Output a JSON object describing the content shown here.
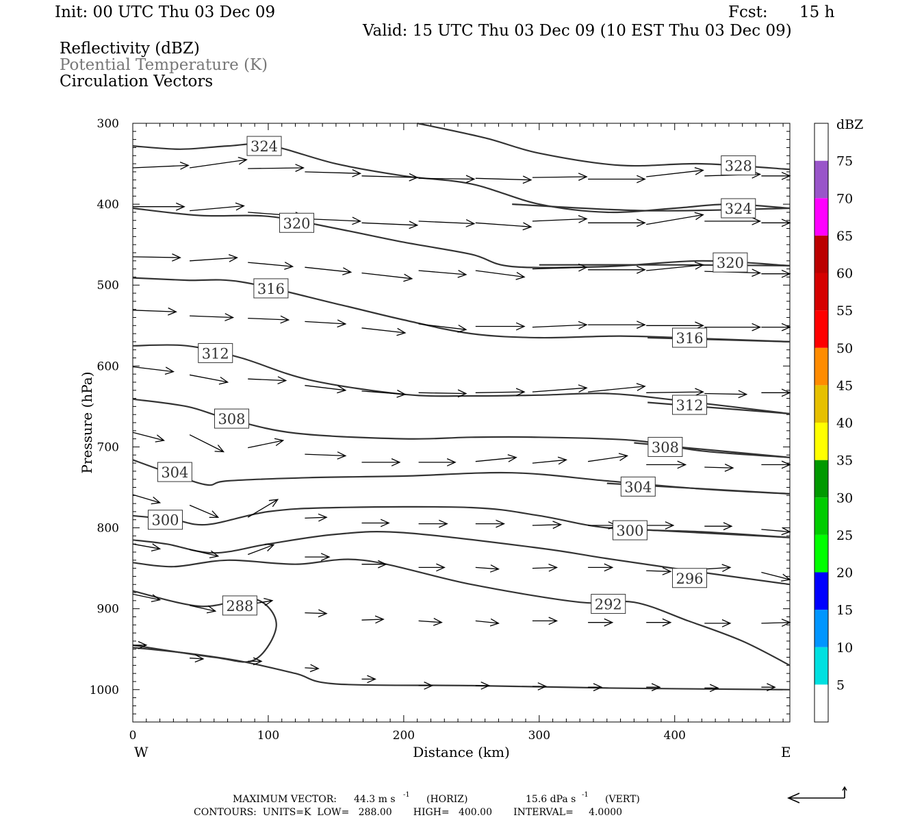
{
  "header": {
    "init": "Init: 00 UTC Thu 03 Dec 09",
    "fcst_label": "Fcst:",
    "fcst_value": "15 h",
    "valid": "Valid: 15 UTC Thu 03 Dec 09 (10 EST Thu 03 Dec 09)",
    "field1": "Reflectivity (dBZ)",
    "field2": "Potential Temperature (K)",
    "field3": "Circulation Vectors"
  },
  "footer": {
    "max_vector_label": "MAXIMUM VECTOR:",
    "max_horiz": "44.3 m s",
    "horiz_tag": "(HORIZ)",
    "max_vert": "15.6 dPa s",
    "vert_tag": "(VERT)",
    "exp": "-1",
    "contours": "CONTOURS:  UNITS=K  LOW=   288.00       HIGH=   400.00       INTERVAL=     4.0000"
  },
  "chart_data": {
    "type": "line",
    "title": "",
    "xlabel": "Distance (km)",
    "ylabel": "Pressure (hPa)",
    "xlim": [
      0,
      485
    ],
    "ylim": [
      1040,
      300
    ],
    "x_ticks": [
      "0",
      "100",
      "200",
      "300",
      "400"
    ],
    "y_ticks": [
      "300",
      "400",
      "500",
      "600",
      "700",
      "800",
      "900",
      "1000"
    ],
    "x_end_labels": {
      "left": "W",
      "right": "E"
    },
    "colorbar": {
      "unit": "dBZ",
      "levels": [
        "5",
        "10",
        "15",
        "20",
        "25",
        "30",
        "35",
        "40",
        "45",
        "50",
        "55",
        "60",
        "65",
        "70",
        "75"
      ],
      "colors": [
        "#ffffff",
        "#00e0e0",
        "#0096ff",
        "#0000ff",
        "#00ff00",
        "#00cc00",
        "#009900",
        "#ffff00",
        "#e6c000",
        "#ff8c00",
        "#ff0000",
        "#d50000",
        "#bb0000",
        "#ff00ff",
        "#9955c9",
        "#ffffff"
      ]
    },
    "series": [
      {
        "name": "324",
        "label_at": [
          97,
          328
        ],
        "points": [
          [
            0,
            328
          ],
          [
            35,
            332
          ],
          [
            70,
            328
          ],
          [
            100,
            327
          ],
          [
            150,
            350
          ],
          [
            200,
            365
          ],
          [
            250,
            375
          ],
          [
            300,
            400
          ],
          [
            350,
            410
          ],
          [
            400,
            405
          ],
          [
            440,
            400
          ],
          [
            485,
            405
          ]
        ]
      },
      {
        "name": "328",
        "label_at": [
          447,
          352
        ],
        "points": [
          [
            210,
            300
          ],
          [
            260,
            318
          ],
          [
            300,
            337
          ],
          [
            360,
            352
          ],
          [
            420,
            350
          ],
          [
            485,
            357
          ]
        ]
      },
      {
        "name": "320",
        "label_at": [
          121,
          423
        ],
        "points": [
          [
            0,
            405
          ],
          [
            50,
            414
          ],
          [
            100,
            415
          ],
          [
            150,
            430
          ],
          [
            200,
            447
          ],
          [
            250,
            462
          ],
          [
            280,
            477
          ],
          [
            350,
            477
          ],
          [
            420,
            470
          ],
          [
            485,
            476
          ]
        ]
      },
      {
        "name": "324",
        "label_at": [
          447,
          405
        ],
        "points": [
          [
            280,
            400
          ],
          [
            380,
            408
          ],
          [
            485,
            405
          ]
        ]
      },
      {
        "name": "320",
        "label_at": [
          441,
          472
        ],
        "points": [
          [
            300,
            475
          ],
          [
            400,
            475
          ],
          [
            485,
            476
          ]
        ]
      },
      {
        "name": "316",
        "label_at": [
          102,
          504
        ],
        "points": [
          [
            0,
            491
          ],
          [
            40,
            494
          ],
          [
            80,
            496
          ],
          [
            150,
            523
          ],
          [
            200,
            543
          ],
          [
            250,
            560
          ],
          [
            300,
            565
          ],
          [
            360,
            563
          ],
          [
            420,
            566
          ],
          [
            485,
            570
          ]
        ]
      },
      {
        "name": "316",
        "label_at": [
          411,
          565
        ],
        "points": [
          [
            380,
            565
          ],
          [
            485,
            570
          ]
        ]
      },
      {
        "name": "312",
        "label_at": [
          61,
          584
        ],
        "points": [
          [
            0,
            575
          ],
          [
            40,
            575
          ],
          [
            80,
            590
          ],
          [
            130,
            617
          ],
          [
            200,
            635
          ],
          [
            250,
            637
          ],
          [
            300,
            636
          ],
          [
            350,
            634
          ],
          [
            400,
            642
          ],
          [
            485,
            659
          ]
        ]
      },
      {
        "name": "312",
        "label_at": [
          411,
          648
        ],
        "points": [
          [
            380,
            645
          ],
          [
            485,
            659
          ]
        ]
      },
      {
        "name": "308",
        "label_at": [
          73,
          665
        ],
        "points": [
          [
            0,
            641
          ],
          [
            40,
            650
          ],
          [
            70,
            665
          ],
          [
            120,
            683
          ],
          [
            200,
            690
          ],
          [
            250,
            688
          ],
          [
            300,
            688
          ],
          [
            370,
            692
          ],
          [
            420,
            705
          ],
          [
            485,
            713
          ]
        ]
      },
      {
        "name": "308",
        "label_at": [
          393,
          700
        ],
        "points": [
          [
            370,
            695
          ],
          [
            485,
            713
          ]
        ]
      },
      {
        "name": "304",
        "label_at": [
          31,
          731
        ],
        "points": [
          [
            0,
            716
          ],
          [
            30,
            734
          ],
          [
            55,
            747
          ],
          [
            70,
            742
          ],
          [
            130,
            738
          ],
          [
            200,
            736
          ],
          [
            280,
            732
          ],
          [
            350,
            742
          ],
          [
            420,
            752
          ],
          [
            485,
            758
          ]
        ]
      },
      {
        "name": "304",
        "label_at": [
          373,
          749
        ],
        "points": [
          [
            350,
            745
          ],
          [
            485,
            758
          ]
        ]
      },
      {
        "name": "300",
        "label_at": [
          24,
          790
        ],
        "points": [
          [
            0,
            785
          ],
          [
            30,
            790
          ],
          [
            55,
            796
          ],
          [
            100,
            780
          ],
          [
            150,
            775
          ],
          [
            250,
            775
          ],
          [
            300,
            785
          ],
          [
            350,
            800
          ],
          [
            420,
            805
          ],
          [
            485,
            812
          ]
        ]
      },
      {
        "name": "300",
        "label_at": [
          367,
          803
        ],
        "points": [
          [
            350,
            800
          ],
          [
            485,
            812
          ]
        ]
      },
      {
        "name": "296",
        "label_at": [
          411,
          862
        ],
        "points": [
          [
            0,
            815
          ],
          [
            25,
            820
          ],
          [
            60,
            831
          ],
          [
            100,
            820
          ],
          [
            150,
            808
          ],
          [
            200,
            806
          ],
          [
            300,
            825
          ],
          [
            350,
            838
          ],
          [
            420,
            855
          ],
          [
            485,
            870
          ]
        ]
      },
      {
        "name": "292",
        "label_at": [
          351,
          894
        ],
        "points": [
          [
            0,
            843
          ],
          [
            30,
            848
          ],
          [
            70,
            840
          ],
          [
            120,
            845
          ],
          [
            170,
            840
          ],
          [
            250,
            870
          ],
          [
            330,
            892
          ],
          [
            370,
            892
          ],
          [
            410,
            915
          ],
          [
            450,
            940
          ],
          [
            485,
            970
          ]
        ]
      },
      {
        "name": "288",
        "label_at": [
          79,
          896
        ],
        "points": [
          [
            0,
            878
          ],
          [
            50,
            897
          ],
          [
            90,
            888
          ],
          [
            106,
            920
          ],
          [
            90,
            963
          ],
          [
            60,
            960
          ],
          [
            0,
            945
          ]
        ]
      },
      {
        "name": "",
        "label_at": null,
        "points": [
          [
            0,
            948
          ],
          [
            40,
            955
          ],
          [
            80,
            965
          ],
          [
            120,
            980
          ],
          [
            150,
            993
          ],
          [
            250,
            995
          ],
          [
            350,
            998
          ],
          [
            485,
            1000
          ]
        ]
      }
    ],
    "vectors": [
      [
        0,
        355,
        41,
        352
      ],
      [
        42,
        355,
        84,
        345
      ],
      [
        85,
        356,
        126,
        355
      ],
      [
        127,
        360,
        168,
        362
      ],
      [
        169,
        365,
        210,
        367
      ],
      [
        211,
        368,
        252,
        369
      ],
      [
        253,
        368,
        294,
        370
      ],
      [
        295,
        367,
        335,
        366
      ],
      [
        336,
        369,
        378,
        369
      ],
      [
        379,
        366,
        421,
        358
      ],
      [
        422,
        365,
        463,
        363
      ],
      [
        464,
        365,
        485,
        365
      ],
      [
        0,
        403,
        38,
        403
      ],
      [
        42,
        408,
        82,
        402
      ],
      [
        85,
        410,
        126,
        415
      ],
      [
        127,
        418,
        168,
        421
      ],
      [
        169,
        423,
        210,
        426
      ],
      [
        211,
        421,
        252,
        424
      ],
      [
        253,
        423,
        294,
        428
      ],
      [
        295,
        421,
        335,
        418
      ],
      [
        336,
        423,
        378,
        423
      ],
      [
        379,
        425,
        421,
        413
      ],
      [
        422,
        421,
        463,
        421
      ],
      [
        464,
        423,
        485,
        423
      ],
      [
        0,
        465,
        35,
        466
      ],
      [
        42,
        470,
        77,
        466
      ],
      [
        85,
        472,
        118,
        477
      ],
      [
        127,
        478,
        161,
        484
      ],
      [
        169,
        485,
        206,
        492
      ],
      [
        211,
        482,
        246,
        487
      ],
      [
        253,
        482,
        289,
        490
      ],
      [
        295,
        480,
        335,
        478
      ],
      [
        336,
        481,
        378,
        481
      ],
      [
        379,
        482,
        421,
        475
      ],
      [
        422,
        483,
        463,
        485
      ],
      [
        464,
        486,
        485,
        486
      ],
      [
        0,
        531,
        32,
        533
      ],
      [
        42,
        538,
        74,
        540
      ],
      [
        85,
        541,
        115,
        543
      ],
      [
        127,
        545,
        157,
        548
      ],
      [
        169,
        553,
        201,
        559
      ],
      [
        211,
        548,
        246,
        555
      ],
      [
        253,
        551,
        289,
        551
      ],
      [
        295,
        552,
        335,
        549
      ],
      [
        336,
        549,
        378,
        549
      ],
      [
        379,
        550,
        421,
        550
      ],
      [
        422,
        552,
        463,
        552
      ],
      [
        464,
        552,
        485,
        552
      ],
      [
        0,
        601,
        30,
        607
      ],
      [
        42,
        611,
        70,
        620
      ],
      [
        85,
        616,
        113,
        618
      ],
      [
        127,
        624,
        157,
        630
      ],
      [
        169,
        631,
        201,
        635
      ],
      [
        211,
        633,
        246,
        634
      ],
      [
        253,
        633,
        289,
        632
      ],
      [
        295,
        632,
        335,
        627
      ],
      [
        336,
        632,
        378,
        625
      ],
      [
        379,
        633,
        421,
        632
      ],
      [
        422,
        634,
        453,
        635
      ],
      [
        464,
        633,
        485,
        633
      ],
      [
        0,
        682,
        23,
        692
      ],
      [
        42,
        685,
        67,
        706
      ],
      [
        85,
        701,
        111,
        692
      ],
      [
        127,
        709,
        157,
        711
      ],
      [
        169,
        719,
        197,
        719
      ],
      [
        211,
        719,
        238,
        719
      ],
      [
        253,
        718,
        283,
        713
      ],
      [
        295,
        720,
        320,
        716
      ],
      [
        336,
        718,
        365,
        711
      ],
      [
        379,
        722,
        408,
        722
      ],
      [
        422,
        725,
        443,
        726
      ],
      [
        464,
        722,
        485,
        722
      ],
      [
        0,
        759,
        20,
        769
      ],
      [
        42,
        772,
        63,
        787
      ],
      [
        85,
        787,
        107,
        765
      ],
      [
        127,
        788,
        143,
        787
      ],
      [
        169,
        794,
        189,
        794
      ],
      [
        211,
        795,
        232,
        795
      ],
      [
        253,
        795,
        274,
        795
      ],
      [
        295,
        797,
        316,
        796
      ],
      [
        336,
        797,
        357,
        797
      ],
      [
        379,
        797,
        399,
        797
      ],
      [
        422,
        798,
        442,
        798
      ],
      [
        464,
        802,
        485,
        805
      ],
      [
        0,
        820,
        20,
        826
      ],
      [
        42,
        827,
        63,
        835
      ],
      [
        85,
        833,
        104,
        821
      ],
      [
        127,
        836,
        145,
        836
      ],
      [
        169,
        845,
        187,
        845
      ],
      [
        211,
        849,
        230,
        849
      ],
      [
        253,
        849,
        270,
        851
      ],
      [
        295,
        850,
        313,
        849
      ],
      [
        336,
        849,
        354,
        849
      ],
      [
        379,
        853,
        397,
        854
      ],
      [
        422,
        851,
        441,
        849
      ],
      [
        464,
        855,
        485,
        864
      ],
      [
        0,
        882,
        20,
        889
      ],
      [
        42,
        896,
        61,
        903
      ],
      [
        85,
        895,
        103,
        890
      ],
      [
        127,
        905,
        143,
        906
      ],
      [
        169,
        914,
        185,
        913
      ],
      [
        211,
        915,
        228,
        917
      ],
      [
        253,
        915,
        270,
        918
      ],
      [
        295,
        915,
        313,
        915
      ],
      [
        336,
        917,
        354,
        917
      ],
      [
        379,
        917,
        397,
        917
      ],
      [
        422,
        918,
        441,
        918
      ],
      [
        464,
        918,
        485,
        917
      ],
      [
        0,
        945,
        10,
        945
      ],
      [
        42,
        961,
        52,
        962
      ],
      [
        85,
        965,
        95,
        965
      ],
      [
        127,
        973,
        137,
        974
      ],
      [
        169,
        987,
        179,
        987
      ],
      [
        211,
        995,
        221,
        995
      ],
      [
        253,
        995,
        263,
        995
      ],
      [
        295,
        996,
        305,
        996
      ],
      [
        336,
        997,
        346,
        997
      ],
      [
        379,
        997,
        389,
        997
      ],
      [
        422,
        998,
        432,
        998
      ],
      [
        464,
        997,
        474,
        997
      ]
    ]
  }
}
